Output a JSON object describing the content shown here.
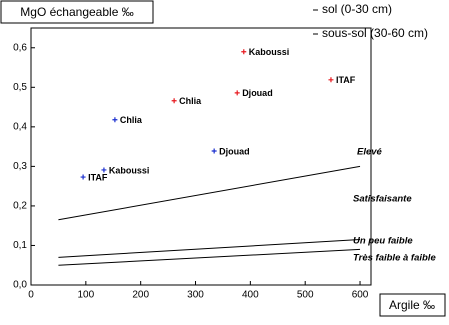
{
  "chart_data": {
    "type": "scatter",
    "y_label": "MgO échangeable ‰",
    "x_label": "Argile ‰",
    "xlim": [
      0,
      620
    ],
    "ylim": [
      0,
      0.65
    ],
    "xticks": [
      0,
      100,
      200,
      300,
      400,
      500,
      600
    ],
    "yticks": [
      {
        "value": 0,
        "label": "0,0"
      },
      {
        "value": 0.1,
        "label": "0,1"
      },
      {
        "value": 0.2,
        "label": "0,2"
      },
      {
        "value": 0.3,
        "label": "0,3"
      },
      {
        "value": 0.4,
        "label": "0,4"
      },
      {
        "value": 0.5,
        "label": "0,5"
      },
      {
        "value": 0.6,
        "label": "0,6"
      }
    ],
    "series": [
      {
        "name": "sol (0-30 cm)",
        "color": "#e8191f",
        "x": [
          388,
          261,
          376,
          547
        ],
        "y": [
          0.59,
          0.466,
          0.486,
          0.519
        ],
        "point_labels": [
          "Kaboussi",
          "Chlia",
          "Djouad",
          "ITAF"
        ]
      },
      {
        "name": "sous-sol (30-60 cm)",
        "color": "#1a2ecf",
        "x": [
          153,
          334,
          133,
          95
        ],
        "y": [
          0.418,
          0.339,
          0.291,
          0.273
        ],
        "point_labels": [
          "Chlia",
          "Djouad",
          "Kaboussi",
          "ITAF"
        ]
      }
    ],
    "lines": [
      {
        "x": [
          50,
          600
        ],
        "y": [
          0.165,
          0.3
        ]
      },
      {
        "x": [
          50,
          600
        ],
        "y": [
          0.07,
          0.115
        ]
      },
      {
        "x": [
          50,
          600
        ],
        "y": [
          0.05,
          0.09
        ]
      }
    ],
    "annotations": [
      "Elevé",
      "Satisfaisante",
      "Un peu faible",
      "Très faible à faible"
    ]
  }
}
